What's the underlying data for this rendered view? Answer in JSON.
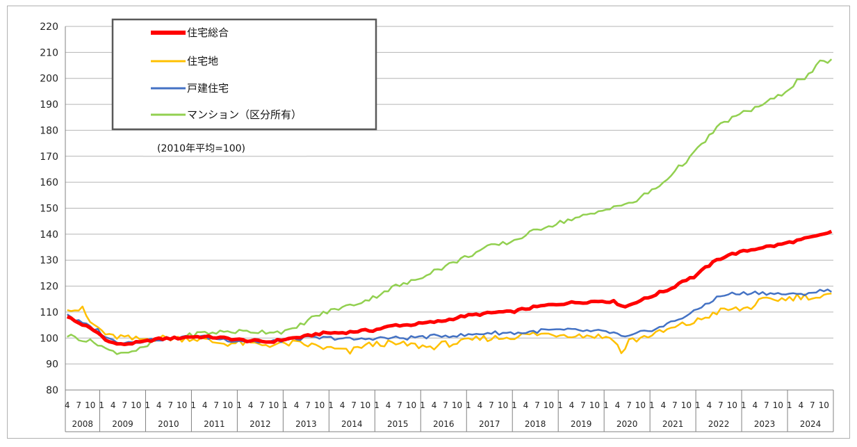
{
  "chart_data": {
    "type": "line",
    "note": "(2010年平均=100)",
    "ylim": [
      80,
      220
    ],
    "yticks": [
      80,
      90,
      100,
      110,
      120,
      130,
      140,
      150,
      160,
      170,
      180,
      190,
      200,
      210,
      220
    ],
    "grid": true,
    "legend_position": "top-left",
    "x_start": "2008-04",
    "x_end": "2024-12",
    "month_labels": [
      "1",
      "4",
      "7",
      "10"
    ],
    "years": [
      "2008",
      "2009",
      "2010",
      "2011",
      "2012",
      "2013",
      "2014",
      "2015",
      "2016",
      "2017",
      "2018",
      "2019",
      "2020",
      "2021",
      "2022",
      "2023",
      "2024"
    ],
    "series": [
      {
        "name": "住宅総合",
        "color": "#ff0000",
        "anchors": [
          [
            "2008-04",
            108.5
          ],
          [
            "2008-06",
            106.5
          ],
          [
            "2008-09",
            104.5
          ],
          [
            "2008-12",
            102
          ],
          [
            "2009-03",
            98.5
          ],
          [
            "2009-06",
            97.5
          ],
          [
            "2009-09",
            98
          ],
          [
            "2009-12",
            98.5
          ],
          [
            "2010-03",
            99.5
          ],
          [
            "2010-06",
            99.8
          ],
          [
            "2010-09",
            100
          ],
          [
            "2010-12",
            100.5
          ],
          [
            "2011-03",
            100.5
          ],
          [
            "2011-06",
            100.3
          ],
          [
            "2011-09",
            100
          ],
          [
            "2011-12",
            99.5
          ],
          [
            "2012-03",
            99
          ],
          [
            "2012-06",
            98.8
          ],
          [
            "2012-09",
            98.5
          ],
          [
            "2012-12",
            99.3
          ],
          [
            "2013-03",
            100
          ],
          [
            "2013-06",
            100.5
          ],
          [
            "2013-09",
            101.5
          ],
          [
            "2013-12",
            102
          ],
          [
            "2014-03",
            102
          ],
          [
            "2014-06",
            102.3
          ],
          [
            "2014-09",
            102.8
          ],
          [
            "2014-12",
            103
          ],
          [
            "2015-03",
            104
          ],
          [
            "2015-06",
            105
          ],
          [
            "2015-09",
            105
          ],
          [
            "2015-12",
            105.5
          ],
          [
            "2016-03",
            106
          ],
          [
            "2016-06",
            106.5
          ],
          [
            "2016-09",
            107.5
          ],
          [
            "2016-12",
            108.5
          ],
          [
            "2017-03",
            109
          ],
          [
            "2017-06",
            109.5
          ],
          [
            "2017-09",
            110
          ],
          [
            "2017-12",
            110
          ],
          [
            "2018-03",
            111
          ],
          [
            "2018-06",
            111.8
          ],
          [
            "2018-09",
            112.5
          ],
          [
            "2018-12",
            113
          ],
          [
            "2019-03",
            113.5
          ],
          [
            "2019-06",
            113.8
          ],
          [
            "2019-09",
            114
          ],
          [
            "2019-12",
            114.3
          ],
          [
            "2020-03",
            114
          ],
          [
            "2020-06",
            112
          ],
          [
            "2020-09",
            114
          ],
          [
            "2020-12",
            115.5
          ],
          [
            "2021-03",
            117.5
          ],
          [
            "2021-06",
            119
          ],
          [
            "2021-09",
            122
          ],
          [
            "2021-12",
            123.5
          ],
          [
            "2022-03",
            127
          ],
          [
            "2022-06",
            130
          ],
          [
            "2022-09",
            132
          ],
          [
            "2022-12",
            133
          ],
          [
            "2023-03",
            134
          ],
          [
            "2023-06",
            135
          ],
          [
            "2023-09",
            135.5
          ],
          [
            "2023-12",
            136.5
          ],
          [
            "2024-03",
            137.5
          ],
          [
            "2024-06",
            138.5
          ],
          [
            "2024-09",
            139.5
          ],
          [
            "2024-12",
            141
          ]
        ]
      },
      {
        "name": "住宅地",
        "color": "#ffc000",
        "anchors": [
          [
            "2008-04",
            112
          ],
          [
            "2008-06",
            111
          ],
          [
            "2008-08",
            111
          ],
          [
            "2008-10",
            106
          ],
          [
            "2008-12",
            104
          ],
          [
            "2009-03",
            100.5
          ],
          [
            "2009-06",
            100.5
          ],
          [
            "2009-09",
            99.5
          ],
          [
            "2009-12",
            99.5
          ],
          [
            "2010-03",
            100
          ],
          [
            "2010-06",
            100
          ],
          [
            "2010-09",
            99.8
          ],
          [
            "2010-12",
            100
          ],
          [
            "2011-03",
            99.5
          ],
          [
            "2011-06",
            98.5
          ],
          [
            "2011-09",
            98
          ],
          [
            "2011-12",
            98
          ],
          [
            "2012-03",
            98
          ],
          [
            "2012-06",
            97.5
          ],
          [
            "2012-09",
            97.5
          ],
          [
            "2012-12",
            97.5
          ],
          [
            "2013-03",
            98
          ],
          [
            "2013-06",
            97.5
          ],
          [
            "2013-09",
            97
          ],
          [
            "2013-12",
            96
          ],
          [
            "2014-03",
            95.5
          ],
          [
            "2014-06",
            94.5
          ],
          [
            "2014-09",
            97
          ],
          [
            "2014-12",
            97.5
          ],
          [
            "2015-03",
            98
          ],
          [
            "2015-06",
            97.5
          ],
          [
            "2015-09",
            97.5
          ],
          [
            "2015-12",
            97
          ],
          [
            "2016-03",
            96.5
          ],
          [
            "2016-06",
            97.5
          ],
          [
            "2016-09",
            98
          ],
          [
            "2016-12",
            98.5
          ],
          [
            "2017-03",
            99.5
          ],
          [
            "2017-06",
            100
          ],
          [
            "2017-09",
            100
          ],
          [
            "2017-12",
            100.5
          ],
          [
            "2018-03",
            101
          ],
          [
            "2018-06",
            101.5
          ],
          [
            "2018-09",
            101.5
          ],
          [
            "2018-12",
            101.5
          ],
          [
            "2019-03",
            101.5
          ],
          [
            "2019-06",
            101
          ],
          [
            "2019-09",
            101
          ],
          [
            "2019-12",
            100.5
          ],
          [
            "2020-03",
            100
          ],
          [
            "2020-05",
            94
          ],
          [
            "2020-07",
            99
          ],
          [
            "2020-09",
            99.5
          ],
          [
            "2020-12",
            101
          ],
          [
            "2021-03",
            102
          ],
          [
            "2021-06",
            103.5
          ],
          [
            "2021-09",
            105
          ],
          [
            "2021-12",
            106
          ],
          [
            "2022-03",
            108
          ],
          [
            "2022-06",
            110
          ],
          [
            "2022-09",
            111
          ],
          [
            "2022-12",
            111
          ],
          [
            "2023-03",
            112
          ],
          [
            "2023-05",
            114
          ],
          [
            "2023-09",
            115
          ],
          [
            "2023-12",
            115
          ],
          [
            "2024-03",
            116
          ],
          [
            "2024-06",
            116
          ],
          [
            "2024-09",
            115.5
          ],
          [
            "2024-12",
            116.5
          ]
        ]
      },
      {
        "name": "戸建住宅",
        "color": "#4472c4",
        "anchors": [
          [
            "2008-04",
            109.5
          ],
          [
            "2008-06",
            107
          ],
          [
            "2008-09",
            105
          ],
          [
            "2008-12",
            103
          ],
          [
            "2009-03",
            99.5
          ],
          [
            "2009-06",
            98.5
          ],
          [
            "2009-09",
            98.5
          ],
          [
            "2009-12",
            99
          ],
          [
            "2010-03",
            99.5
          ],
          [
            "2010-06",
            99.7
          ],
          [
            "2010-09",
            100
          ],
          [
            "2010-12",
            100.5
          ],
          [
            "2011-03",
            100.5
          ],
          [
            "2011-06",
            100
          ],
          [
            "2011-09",
            99.5
          ],
          [
            "2011-12",
            99
          ],
          [
            "2012-03",
            99
          ],
          [
            "2012-06",
            98.5
          ],
          [
            "2012-09",
            98.5
          ],
          [
            "2012-12",
            99
          ],
          [
            "2013-03",
            99.5
          ],
          [
            "2013-06",
            100
          ],
          [
            "2013-09",
            100
          ],
          [
            "2013-12",
            100
          ],
          [
            "2014-03",
            100
          ],
          [
            "2014-06",
            99.5
          ],
          [
            "2014-09",
            99.5
          ],
          [
            "2014-12",
            100
          ],
          [
            "2015-03",
            100
          ],
          [
            "2015-06",
            100
          ],
          [
            "2015-09",
            100
          ],
          [
            "2015-12",
            100.5
          ],
          [
            "2016-03",
            100.5
          ],
          [
            "2016-06",
            101
          ],
          [
            "2016-09",
            101
          ],
          [
            "2016-12",
            101
          ],
          [
            "2017-03",
            101.5
          ],
          [
            "2017-06",
            102
          ],
          [
            "2017-09",
            102
          ],
          [
            "2017-12",
            102
          ],
          [
            "2018-03",
            102
          ],
          [
            "2018-06",
            102.5
          ],
          [
            "2018-09",
            103
          ],
          [
            "2018-12",
            103
          ],
          [
            "2019-03",
            103
          ],
          [
            "2019-06",
            103
          ],
          [
            "2019-09",
            102.5
          ],
          [
            "2019-12",
            102.5
          ],
          [
            "2020-03",
            102
          ],
          [
            "2020-06",
            100
          ],
          [
            "2020-09",
            101.5
          ],
          [
            "2020-12",
            103
          ],
          [
            "2021-03",
            104
          ],
          [
            "2021-06",
            106
          ],
          [
            "2021-09",
            108
          ],
          [
            "2021-12",
            110
          ],
          [
            "2022-03",
            113
          ],
          [
            "2022-06",
            115.5
          ],
          [
            "2022-09",
            117
          ],
          [
            "2022-12",
            117
          ],
          [
            "2023-03",
            117.5
          ],
          [
            "2023-06",
            117.5
          ],
          [
            "2023-09",
            117
          ],
          [
            "2023-12",
            117
          ],
          [
            "2024-03",
            116.5
          ],
          [
            "2024-06",
            117.5
          ],
          [
            "2024-09",
            118
          ],
          [
            "2024-12",
            118.5
          ]
        ]
      },
      {
        "name": "マンション（区分所有）",
        "color": "#92d050",
        "anchors": [
          [
            "2008-04",
            101
          ],
          [
            "2008-06",
            100.5
          ],
          [
            "2008-09",
            99
          ],
          [
            "2008-12",
            98
          ],
          [
            "2009-03",
            95
          ],
          [
            "2009-06",
            94.5
          ],
          [
            "2009-09",
            95
          ],
          [
            "2009-12",
            96
          ],
          [
            "2010-03",
            99
          ],
          [
            "2010-06",
            99.5
          ],
          [
            "2010-09",
            100
          ],
          [
            "2010-12",
            101
          ],
          [
            "2011-03",
            102
          ],
          [
            "2011-06",
            102
          ],
          [
            "2011-09",
            102.5
          ],
          [
            "2011-12",
            102.5
          ],
          [
            "2012-03",
            102.5
          ],
          [
            "2012-06",
            102.5
          ],
          [
            "2012-09",
            102.5
          ],
          [
            "2012-12",
            102.5
          ],
          [
            "2013-03",
            103
          ],
          [
            "2013-06",
            106
          ],
          [
            "2013-09",
            108.5
          ],
          [
            "2013-12",
            110
          ],
          [
            "2014-03",
            111.5
          ],
          [
            "2014-06",
            112.5
          ],
          [
            "2014-09",
            114
          ],
          [
            "2014-12",
            115.5
          ],
          [
            "2015-03",
            118
          ],
          [
            "2015-06",
            120
          ],
          [
            "2015-09",
            121
          ],
          [
            "2015-12",
            123
          ],
          [
            "2016-03",
            125.5
          ],
          [
            "2016-06",
            127
          ],
          [
            "2016-09",
            129
          ],
          [
            "2016-12",
            131
          ],
          [
            "2017-03",
            133
          ],
          [
            "2017-06",
            135
          ],
          [
            "2017-09",
            136
          ],
          [
            "2017-12",
            137
          ],
          [
            "2018-03",
            139
          ],
          [
            "2018-06",
            141
          ],
          [
            "2018-09",
            143
          ],
          [
            "2018-12",
            144
          ],
          [
            "2019-03",
            145.5
          ],
          [
            "2019-06",
            146.5
          ],
          [
            "2019-09",
            147.5
          ],
          [
            "2019-12",
            149
          ],
          [
            "2020-03",
            151
          ],
          [
            "2020-06",
            151
          ],
          [
            "2020-09",
            153
          ],
          [
            "2020-12",
            156
          ],
          [
            "2021-03",
            158.5
          ],
          [
            "2021-06",
            163
          ],
          [
            "2021-09",
            167
          ],
          [
            "2021-12",
            171
          ],
          [
            "2022-03",
            176
          ],
          [
            "2022-06",
            181
          ],
          [
            "2022-09",
            184
          ],
          [
            "2022-12",
            186
          ],
          [
            "2023-03",
            188
          ],
          [
            "2023-06",
            190
          ],
          [
            "2023-09",
            192
          ],
          [
            "2023-12",
            195
          ],
          [
            "2024-03",
            199
          ],
          [
            "2024-06",
            201
          ],
          [
            "2024-09",
            206
          ],
          [
            "2024-12",
            207
          ]
        ]
      }
    ]
  }
}
